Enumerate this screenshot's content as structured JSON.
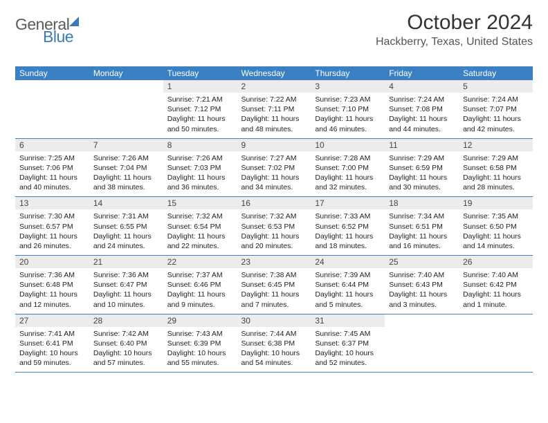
{
  "logo": {
    "part1": "General",
    "part2": "Blue"
  },
  "title": "October 2024",
  "location": "Hackberry, Texas, United States",
  "colors": {
    "header_bg": "#3a80c2",
    "header_fg": "#ffffff",
    "daynum_bg": "#ececec",
    "row_border": "#3a80c2",
    "logo_blue": "#3a7ab8"
  },
  "weekdays": [
    "Sunday",
    "Monday",
    "Tuesday",
    "Wednesday",
    "Thursday",
    "Friday",
    "Saturday"
  ],
  "weeks": [
    [
      {
        "day": "",
        "sunrise": "",
        "sunset": "",
        "daylight1": "",
        "daylight2": "",
        "empty": true
      },
      {
        "day": "",
        "sunrise": "",
        "sunset": "",
        "daylight1": "",
        "daylight2": "",
        "empty": true
      },
      {
        "day": "1",
        "sunrise": "Sunrise: 7:21 AM",
        "sunset": "Sunset: 7:12 PM",
        "daylight1": "Daylight: 11 hours",
        "daylight2": "and 50 minutes."
      },
      {
        "day": "2",
        "sunrise": "Sunrise: 7:22 AM",
        "sunset": "Sunset: 7:11 PM",
        "daylight1": "Daylight: 11 hours",
        "daylight2": "and 48 minutes."
      },
      {
        "day": "3",
        "sunrise": "Sunrise: 7:23 AM",
        "sunset": "Sunset: 7:10 PM",
        "daylight1": "Daylight: 11 hours",
        "daylight2": "and 46 minutes."
      },
      {
        "day": "4",
        "sunrise": "Sunrise: 7:24 AM",
        "sunset": "Sunset: 7:08 PM",
        "daylight1": "Daylight: 11 hours",
        "daylight2": "and 44 minutes."
      },
      {
        "day": "5",
        "sunrise": "Sunrise: 7:24 AM",
        "sunset": "Sunset: 7:07 PM",
        "daylight1": "Daylight: 11 hours",
        "daylight2": "and 42 minutes."
      }
    ],
    [
      {
        "day": "6",
        "sunrise": "Sunrise: 7:25 AM",
        "sunset": "Sunset: 7:06 PM",
        "daylight1": "Daylight: 11 hours",
        "daylight2": "and 40 minutes."
      },
      {
        "day": "7",
        "sunrise": "Sunrise: 7:26 AM",
        "sunset": "Sunset: 7:04 PM",
        "daylight1": "Daylight: 11 hours",
        "daylight2": "and 38 minutes."
      },
      {
        "day": "8",
        "sunrise": "Sunrise: 7:26 AM",
        "sunset": "Sunset: 7:03 PM",
        "daylight1": "Daylight: 11 hours",
        "daylight2": "and 36 minutes."
      },
      {
        "day": "9",
        "sunrise": "Sunrise: 7:27 AM",
        "sunset": "Sunset: 7:02 PM",
        "daylight1": "Daylight: 11 hours",
        "daylight2": "and 34 minutes."
      },
      {
        "day": "10",
        "sunrise": "Sunrise: 7:28 AM",
        "sunset": "Sunset: 7:00 PM",
        "daylight1": "Daylight: 11 hours",
        "daylight2": "and 32 minutes."
      },
      {
        "day": "11",
        "sunrise": "Sunrise: 7:29 AM",
        "sunset": "Sunset: 6:59 PM",
        "daylight1": "Daylight: 11 hours",
        "daylight2": "and 30 minutes."
      },
      {
        "day": "12",
        "sunrise": "Sunrise: 7:29 AM",
        "sunset": "Sunset: 6:58 PM",
        "daylight1": "Daylight: 11 hours",
        "daylight2": "and 28 minutes."
      }
    ],
    [
      {
        "day": "13",
        "sunrise": "Sunrise: 7:30 AM",
        "sunset": "Sunset: 6:57 PM",
        "daylight1": "Daylight: 11 hours",
        "daylight2": "and 26 minutes."
      },
      {
        "day": "14",
        "sunrise": "Sunrise: 7:31 AM",
        "sunset": "Sunset: 6:55 PM",
        "daylight1": "Daylight: 11 hours",
        "daylight2": "and 24 minutes."
      },
      {
        "day": "15",
        "sunrise": "Sunrise: 7:32 AM",
        "sunset": "Sunset: 6:54 PM",
        "daylight1": "Daylight: 11 hours",
        "daylight2": "and 22 minutes."
      },
      {
        "day": "16",
        "sunrise": "Sunrise: 7:32 AM",
        "sunset": "Sunset: 6:53 PM",
        "daylight1": "Daylight: 11 hours",
        "daylight2": "and 20 minutes."
      },
      {
        "day": "17",
        "sunrise": "Sunrise: 7:33 AM",
        "sunset": "Sunset: 6:52 PM",
        "daylight1": "Daylight: 11 hours",
        "daylight2": "and 18 minutes."
      },
      {
        "day": "18",
        "sunrise": "Sunrise: 7:34 AM",
        "sunset": "Sunset: 6:51 PM",
        "daylight1": "Daylight: 11 hours",
        "daylight2": "and 16 minutes."
      },
      {
        "day": "19",
        "sunrise": "Sunrise: 7:35 AM",
        "sunset": "Sunset: 6:50 PM",
        "daylight1": "Daylight: 11 hours",
        "daylight2": "and 14 minutes."
      }
    ],
    [
      {
        "day": "20",
        "sunrise": "Sunrise: 7:36 AM",
        "sunset": "Sunset: 6:48 PM",
        "daylight1": "Daylight: 11 hours",
        "daylight2": "and 12 minutes."
      },
      {
        "day": "21",
        "sunrise": "Sunrise: 7:36 AM",
        "sunset": "Sunset: 6:47 PM",
        "daylight1": "Daylight: 11 hours",
        "daylight2": "and 10 minutes."
      },
      {
        "day": "22",
        "sunrise": "Sunrise: 7:37 AM",
        "sunset": "Sunset: 6:46 PM",
        "daylight1": "Daylight: 11 hours",
        "daylight2": "and 9 minutes."
      },
      {
        "day": "23",
        "sunrise": "Sunrise: 7:38 AM",
        "sunset": "Sunset: 6:45 PM",
        "daylight1": "Daylight: 11 hours",
        "daylight2": "and 7 minutes."
      },
      {
        "day": "24",
        "sunrise": "Sunrise: 7:39 AM",
        "sunset": "Sunset: 6:44 PM",
        "daylight1": "Daylight: 11 hours",
        "daylight2": "and 5 minutes."
      },
      {
        "day": "25",
        "sunrise": "Sunrise: 7:40 AM",
        "sunset": "Sunset: 6:43 PM",
        "daylight1": "Daylight: 11 hours",
        "daylight2": "and 3 minutes."
      },
      {
        "day": "26",
        "sunrise": "Sunrise: 7:40 AM",
        "sunset": "Sunset: 6:42 PM",
        "daylight1": "Daylight: 11 hours",
        "daylight2": "and 1 minute."
      }
    ],
    [
      {
        "day": "27",
        "sunrise": "Sunrise: 7:41 AM",
        "sunset": "Sunset: 6:41 PM",
        "daylight1": "Daylight: 10 hours",
        "daylight2": "and 59 minutes."
      },
      {
        "day": "28",
        "sunrise": "Sunrise: 7:42 AM",
        "sunset": "Sunset: 6:40 PM",
        "daylight1": "Daylight: 10 hours",
        "daylight2": "and 57 minutes."
      },
      {
        "day": "29",
        "sunrise": "Sunrise: 7:43 AM",
        "sunset": "Sunset: 6:39 PM",
        "daylight1": "Daylight: 10 hours",
        "daylight2": "and 55 minutes."
      },
      {
        "day": "30",
        "sunrise": "Sunrise: 7:44 AM",
        "sunset": "Sunset: 6:38 PM",
        "daylight1": "Daylight: 10 hours",
        "daylight2": "and 54 minutes."
      },
      {
        "day": "31",
        "sunrise": "Sunrise: 7:45 AM",
        "sunset": "Sunset: 6:37 PM",
        "daylight1": "Daylight: 10 hours",
        "daylight2": "and 52 minutes."
      },
      {
        "day": "",
        "sunrise": "",
        "sunset": "",
        "daylight1": "",
        "daylight2": "",
        "empty": true
      },
      {
        "day": "",
        "sunrise": "",
        "sunset": "",
        "daylight1": "",
        "daylight2": "",
        "empty": true
      }
    ]
  ]
}
